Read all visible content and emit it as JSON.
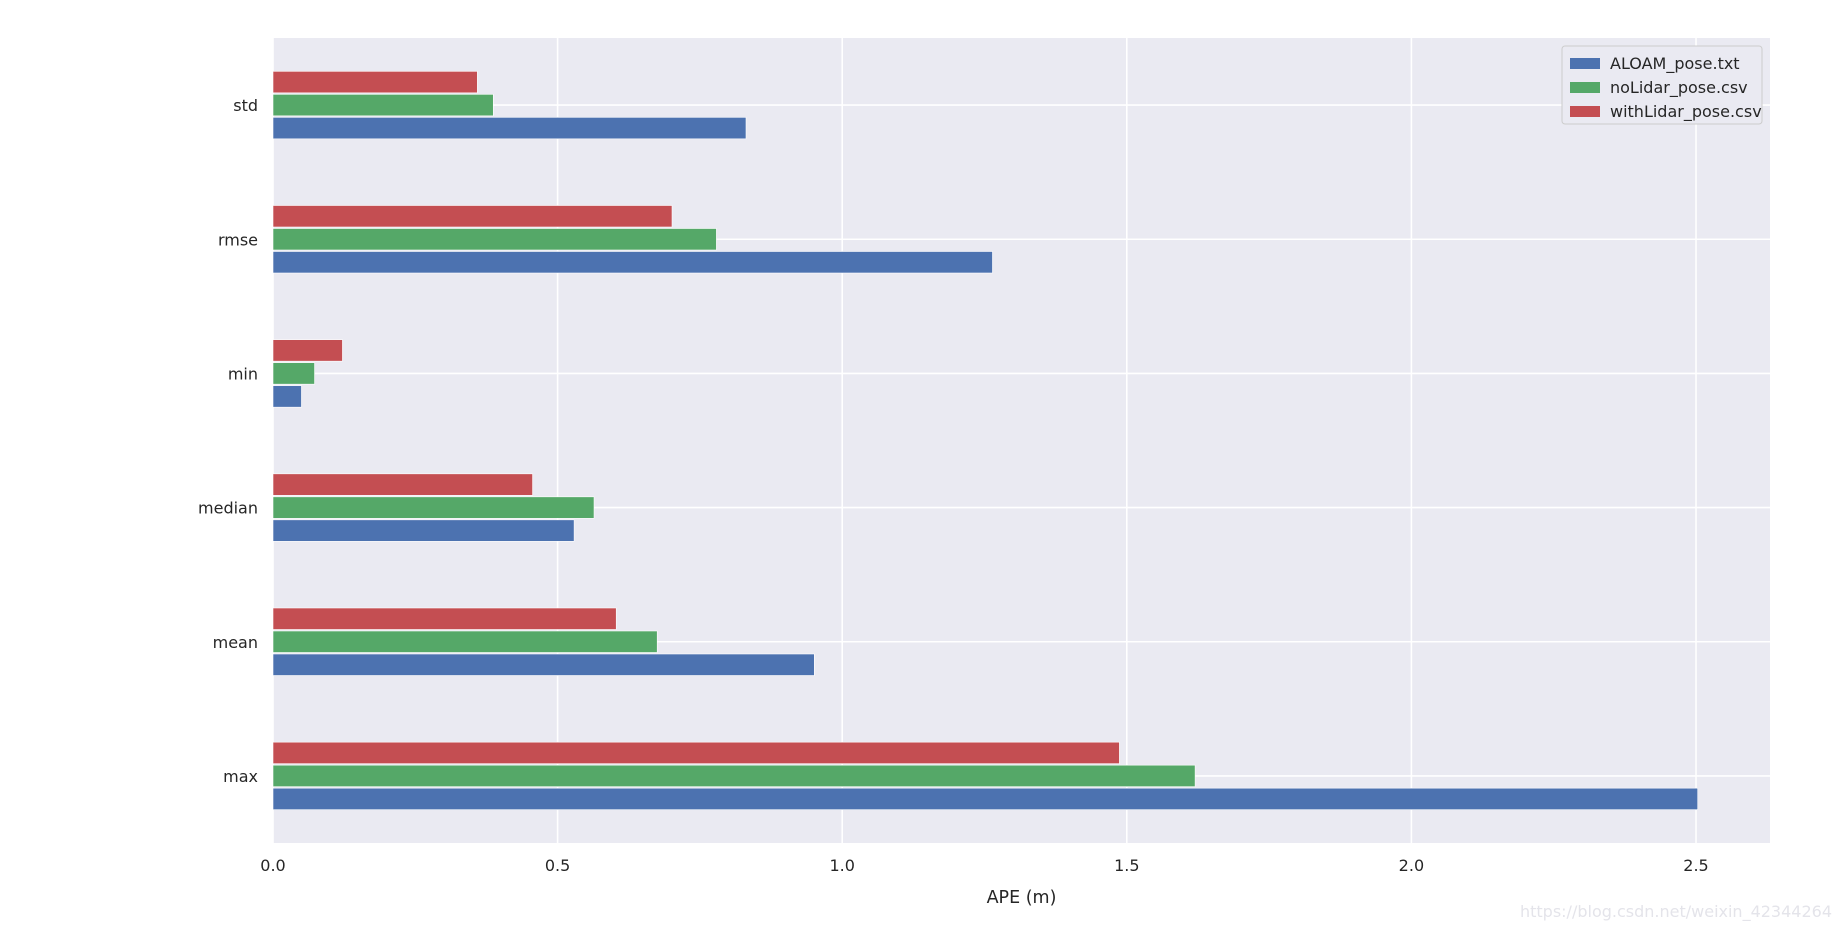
{
  "chart_data": {
    "type": "bar",
    "orientation": "horizontal",
    "categories": [
      "max",
      "mean",
      "median",
      "min",
      "rmse",
      "std"
    ],
    "series": [
      {
        "name": "ALOAM_pose.txt",
        "color": "#4c72b0",
        "values": [
          2.503,
          0.951,
          0.529,
          0.05,
          1.264,
          0.831
        ]
      },
      {
        "name": "noLidar_pose.csv",
        "color": "#55a868",
        "values": [
          1.62,
          0.675,
          0.564,
          0.073,
          0.779,
          0.387
        ]
      },
      {
        "name": "withLidar_pose.csv",
        "color": "#c44e52",
        "values": [
          1.487,
          0.603,
          0.456,
          0.122,
          0.701,
          0.359
        ]
      }
    ],
    "xlabel": "APE (m)",
    "ylabel": "",
    "xlim": [
      0,
      2.63
    ],
    "xticks": [
      0.0,
      0.5,
      1.0,
      1.5,
      2.0,
      2.5
    ],
    "xtick_labels": [
      "0.0",
      "0.5",
      "1.0",
      "1.5",
      "2.0",
      "2.5"
    ],
    "grid": true,
    "legend_position": "top-right",
    "background": "#eaeaf2"
  },
  "watermark": "https://blog.csdn.net/weixin_42344264"
}
